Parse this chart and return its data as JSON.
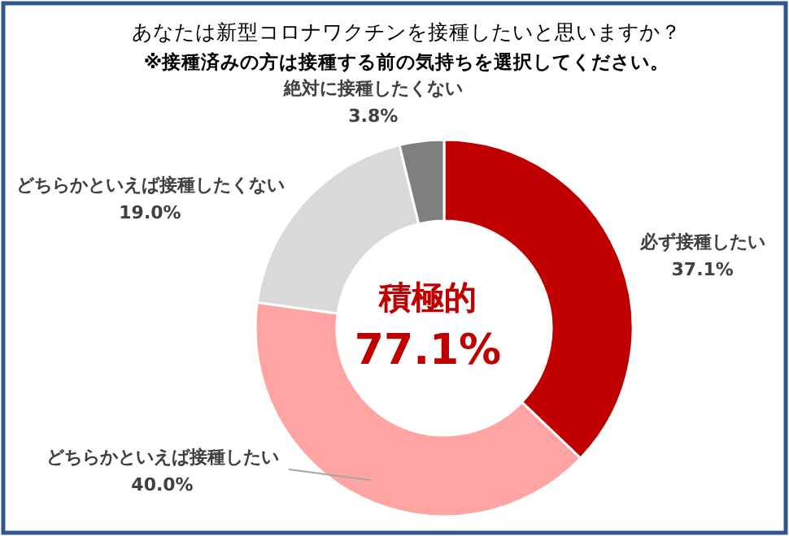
{
  "chart_data": {
    "type": "donut",
    "title": "あなたは新型コロナワクチンを接種したいと思いますか？",
    "subtitle": "※接種済みの方は接種する前の気持ちを選択してください。",
    "categories": [
      "必ず接種したい",
      "どちらかといえば接種したい",
      "どちらかといえば接種したくない",
      "絶対に接種したくない"
    ],
    "values": [
      37.1,
      40.0,
      19.0,
      3.8
    ],
    "colors": [
      "#c00000",
      "#ffa3a3",
      "#d9d9d9",
      "#7f7f7f"
    ],
    "value_labels": [
      "37.1%",
      "40.0%",
      "19.0%",
      "3.8%"
    ],
    "annotations": [
      "積極的",
      "77.1%"
    ]
  }
}
